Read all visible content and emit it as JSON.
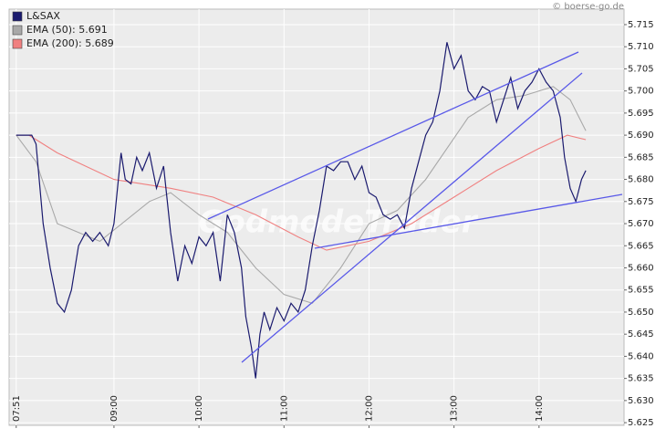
{
  "chart_data": {
    "type": "line",
    "copyright": "© boerse-go.de",
    "watermark": "GodmodeTrader",
    "x": [
      471,
      482,
      485,
      490,
      495,
      500,
      505,
      510,
      515,
      520,
      525,
      530,
      536,
      540,
      545,
      548,
      552,
      556,
      560,
      565,
      570,
      575,
      580,
      585,
      590,
      595,
      600,
      605,
      610,
      615,
      620,
      625,
      630,
      633,
      637,
      640,
      643,
      646,
      650,
      655,
      660,
      665,
      670,
      675,
      680,
      685,
      690,
      695,
      700,
      705,
      710,
      715,
      720,
      725,
      730,
      735,
      740,
      745,
      750,
      755,
      760,
      765,
      770,
      775,
      780,
      785,
      790,
      795,
      800,
      805,
      810,
      815,
      820,
      825,
      830,
      835,
      840,
      845,
      850,
      855,
      858,
      862,
      866,
      870,
      873
    ],
    "series": [
      {
        "name": "L&SAX",
        "color": "#1a1a6e",
        "values": [
          5.69,
          5.69,
          5.688,
          5.67,
          5.66,
          5.652,
          5.65,
          5.655,
          5.665,
          5.668,
          5.666,
          5.668,
          5.665,
          5.67,
          5.686,
          5.68,
          5.679,
          5.685,
          5.682,
          5.686,
          5.678,
          5.683,
          5.668,
          5.657,
          5.665,
          5.661,
          5.667,
          5.665,
          5.668,
          5.657,
          5.672,
          5.668,
          5.66,
          5.649,
          5.642,
          5.635,
          5.645,
          5.65,
          5.646,
          5.651,
          5.648,
          5.652,
          5.65,
          5.655,
          5.665,
          5.673,
          5.683,
          5.682,
          5.684,
          5.684,
          5.68,
          5.683,
          5.677,
          5.676,
          5.672,
          5.671,
          5.672,
          5.669,
          5.678,
          5.684,
          5.69,
          5.693,
          5.7,
          5.711,
          5.705,
          5.708,
          5.7,
          5.698,
          5.701,
          5.7,
          5.693,
          5.698,
          5.703,
          5.696,
          5.7,
          5.702,
          5.705,
          5.702,
          5.7,
          5.694,
          5.685,
          5.678,
          5.675,
          5.68,
          5.682
        ]
      },
      {
        "name": "EMA (50): 5.691",
        "color": "#a8a8a8",
        "x": [
          471,
          485,
          500,
          530,
          565,
          580,
          600,
          620,
          640,
          660,
          680,
          700,
          720,
          740,
          760,
          790,
          810,
          830,
          850,
          862,
          873
        ],
        "values": [
          5.69,
          5.684,
          5.67,
          5.666,
          5.675,
          5.677,
          5.672,
          5.668,
          5.66,
          5.654,
          5.652,
          5.66,
          5.67,
          5.673,
          5.68,
          5.694,
          5.698,
          5.699,
          5.701,
          5.698,
          5.691
        ]
      },
      {
        "name": "EMA (200): 5.689",
        "color": "#f08080",
        "x": [
          471,
          480,
          500,
          540,
          580,
          610,
          640,
          670,
          690,
          720,
          750,
          780,
          810,
          840,
          860,
          873
        ],
        "values": [
          5.69,
          5.69,
          5.686,
          5.68,
          5.678,
          5.676,
          5.672,
          5.667,
          5.664,
          5.666,
          5.67,
          5.676,
          5.682,
          5.687,
          5.69,
          5.689
        ]
      }
    ],
    "xlim": [
      466,
      900
    ],
    "xticks": [
      {
        "value": 471,
        "label": "07:51"
      },
      {
        "value": 540,
        "label": "09:00"
      },
      {
        "value": 600,
        "label": "10:00"
      },
      {
        "value": 660,
        "label": "11:00"
      },
      {
        "value": 720,
        "label": "12:00"
      },
      {
        "value": 780,
        "label": "13:00"
      },
      {
        "value": 840,
        "label": "14:00"
      }
    ],
    "ylim": [
      5.6244,
      5.7185
    ],
    "yticks": [
      {
        "value": 5.625,
        "label": "5.625"
      },
      {
        "value": 5.63,
        "label": "5.630"
      },
      5.635,
      {
        "value": 5.64,
        "label": "5.640"
      },
      5.645,
      {
        "value": 5.65,
        "label": "5.650"
      },
      5.655,
      {
        "value": 5.66,
        "label": "5.660"
      },
      5.665,
      {
        "value": 5.67,
        "label": "5.670"
      },
      5.675,
      {
        "value": 5.68,
        "label": "5.680"
      },
      5.685,
      {
        "value": 5.69,
        "label": "5.690"
      },
      5.695,
      {
        "value": 5.7,
        "label": "5.700"
      },
      5.705,
      {
        "value": 5.71,
        "label": "5.710"
      },
      5.715
    ],
    "grid": true
  }
}
